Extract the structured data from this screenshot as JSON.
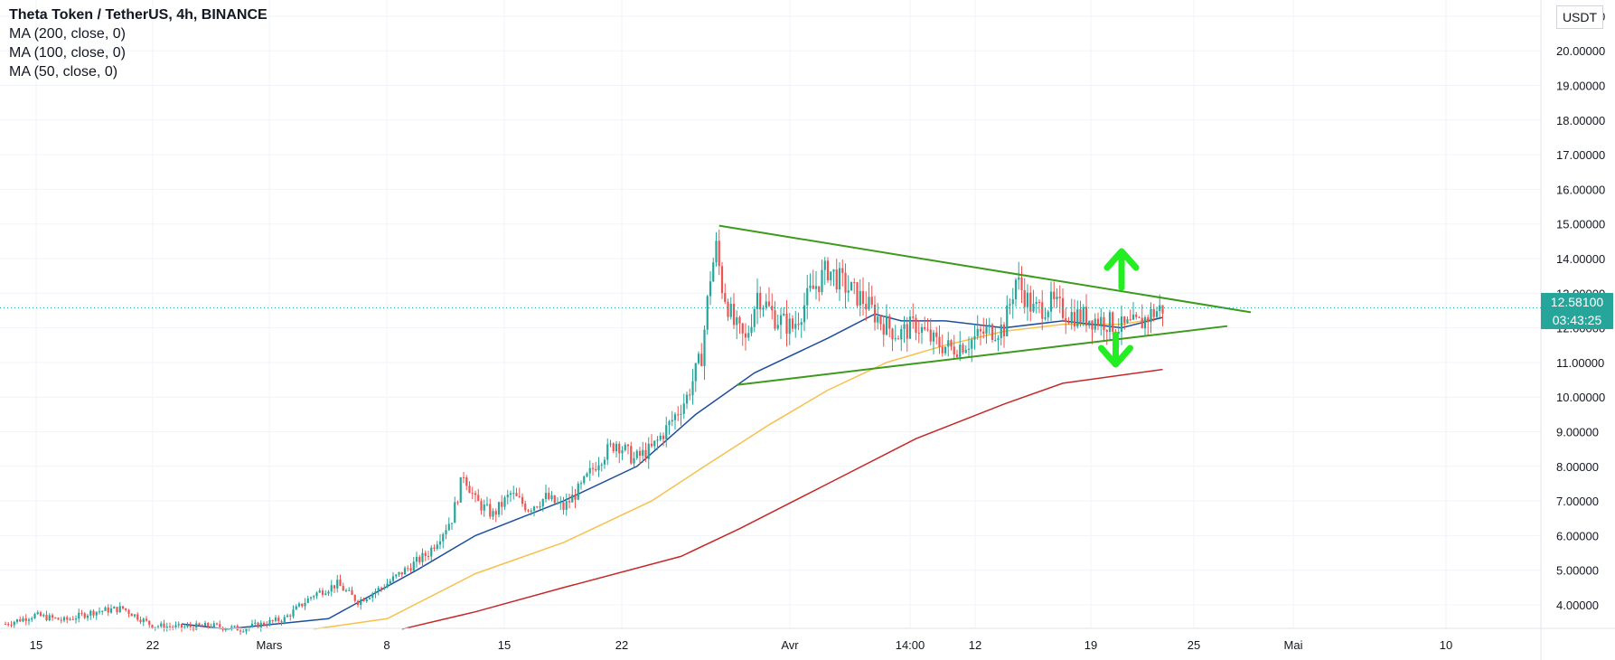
{
  "header": {
    "symbol_title": "Theta Token / TetherUS, 4h, BINANCE",
    "indicators": [
      "MA (200, close, 0)",
      "MA (100, close, 0)",
      "MA (50, close, 0)"
    ]
  },
  "price_axis": {
    "unit": "USDT",
    "top_partial_label": "21.00000"
  },
  "last_price": {
    "value": "12.58100",
    "countdown": "03:43:25",
    "color": "#26a69a"
  },
  "colors": {
    "up": "#26a69a",
    "down": "#ef5350",
    "ma200": "#c62828",
    "ma100": "#f7c04a",
    "ma50": "#1e4f9c",
    "trendline": "#3c9a1c",
    "arrow": "#22ee22",
    "grid": "#f0f3fa",
    "price_line": "#26a69a"
  },
  "chart_data": {
    "type": "candlestick",
    "title": "Theta Token / TetherUS, 4h, BINANCE",
    "exchange": "BINANCE",
    "interval": "4h",
    "y_unit": "USDT",
    "ylim": [
      3.3,
      21.0
    ],
    "x_ticks": [
      "15",
      "22",
      "Mars",
      "8",
      "15",
      "22",
      "Avr",
      "14:00",
      "12",
      "19",
      "25",
      "Mai",
      "10"
    ],
    "y_ticks": [
      4,
      5,
      6,
      7,
      8,
      9,
      10,
      11,
      12,
      13,
      14,
      15,
      16,
      17,
      18,
      19,
      20,
      21
    ],
    "close_path": [
      [
        0,
        3.45
      ],
      [
        10,
        3.7
      ],
      [
        20,
        3.55
      ],
      [
        30,
        3.8
      ],
      [
        40,
        3.9
      ],
      [
        50,
        3.4
      ],
      [
        60,
        3.35
      ],
      [
        70,
        3.4
      ],
      [
        80,
        3.3
      ],
      [
        95,
        3.6
      ],
      [
        105,
        4.3
      ],
      [
        113,
        4.6
      ],
      [
        120,
        4.1
      ],
      [
        128,
        4.5
      ],
      [
        136,
        5.0
      ],
      [
        144,
        5.5
      ],
      [
        152,
        6.5
      ],
      [
        156,
        7.8
      ],
      [
        160,
        7.0
      ],
      [
        166,
        6.6
      ],
      [
        172,
        7.2
      ],
      [
        178,
        6.8
      ],
      [
        184,
        7.1
      ],
      [
        190,
        6.8
      ],
      [
        196,
        7.4
      ],
      [
        202,
        8.2
      ],
      [
        208,
        8.7
      ],
      [
        214,
        8.2
      ],
      [
        220,
        8.5
      ],
      [
        226,
        9.2
      ],
      [
        232,
        10.0
      ],
      [
        237,
        11.2
      ],
      [
        240,
        13.5
      ],
      [
        242,
        14.3
      ],
      [
        244,
        13.2
      ],
      [
        248,
        12.1
      ],
      [
        252,
        11.6
      ],
      [
        256,
        13.0
      ],
      [
        262,
        12.3
      ],
      [
        268,
        12.0
      ],
      [
        274,
        13.0
      ],
      [
        280,
        13.7
      ],
      [
        286,
        13.2
      ],
      [
        292,
        12.8
      ],
      [
        298,
        12.2
      ],
      [
        304,
        11.8
      ],
      [
        310,
        12.1
      ],
      [
        316,
        11.6
      ],
      [
        322,
        11.4
      ],
      [
        328,
        11.6
      ],
      [
        334,
        11.9
      ],
      [
        340,
        12.0
      ],
      [
        344,
        13.4
      ],
      [
        350,
        12.5
      ],
      [
        356,
        12.7
      ],
      [
        362,
        12.4
      ],
      [
        368,
        12.3
      ],
      [
        374,
        12.2
      ],
      [
        380,
        12.0
      ],
      [
        386,
        12.1
      ],
      [
        390,
        12.4
      ],
      [
        394,
        12.58
      ]
    ],
    "series": [
      {
        "name": "MA (200, close, 0)",
        "color": "#c62828",
        "points": [
          [
            135,
            3.3
          ],
          [
            160,
            3.8
          ],
          [
            190,
            4.5
          ],
          [
            230,
            5.4
          ],
          [
            250,
            6.2
          ],
          [
            280,
            7.5
          ],
          [
            310,
            8.8
          ],
          [
            340,
            9.8
          ],
          [
            360,
            10.4
          ],
          [
            394,
            10.8
          ]
        ]
      },
      {
        "name": "MA (100, close, 0)",
        "color": "#f7c04a",
        "points": [
          [
            105,
            3.3
          ],
          [
            130,
            3.6
          ],
          [
            160,
            4.9
          ],
          [
            190,
            5.8
          ],
          [
            220,
            7.0
          ],
          [
            238,
            8.0
          ],
          [
            260,
            9.2
          ],
          [
            280,
            10.2
          ],
          [
            300,
            11.0
          ],
          [
            320,
            11.5
          ],
          [
            340,
            11.9
          ],
          [
            360,
            12.1
          ],
          [
            380,
            12.1
          ],
          [
            394,
            12.3
          ]
        ]
      },
      {
        "name": "MA (50, close, 0)",
        "color": "#1e4f9c",
        "points": [
          [
            60,
            3.45
          ],
          [
            75,
            3.3
          ],
          [
            110,
            3.6
          ],
          [
            140,
            5.0
          ],
          [
            160,
            6.0
          ],
          [
            190,
            7.0
          ],
          [
            215,
            8.0
          ],
          [
            235,
            9.5
          ],
          [
            255,
            10.7
          ],
          [
            280,
            11.7
          ],
          [
            296,
            12.4
          ],
          [
            305,
            12.2
          ],
          [
            320,
            12.2
          ],
          [
            340,
            12.0
          ],
          [
            360,
            12.2
          ],
          [
            380,
            12.0
          ],
          [
            394,
            12.3
          ]
        ]
      }
    ],
    "drawings": {
      "upper_trendline": [
        [
          243,
          14.95
        ],
        [
          424,
          12.45
        ]
      ],
      "lower_trendline": [
        [
          249,
          10.35
        ],
        [
          416,
          12.05
        ]
      ],
      "arrow_up_x": 380,
      "arrow_down_x": 378
    }
  }
}
